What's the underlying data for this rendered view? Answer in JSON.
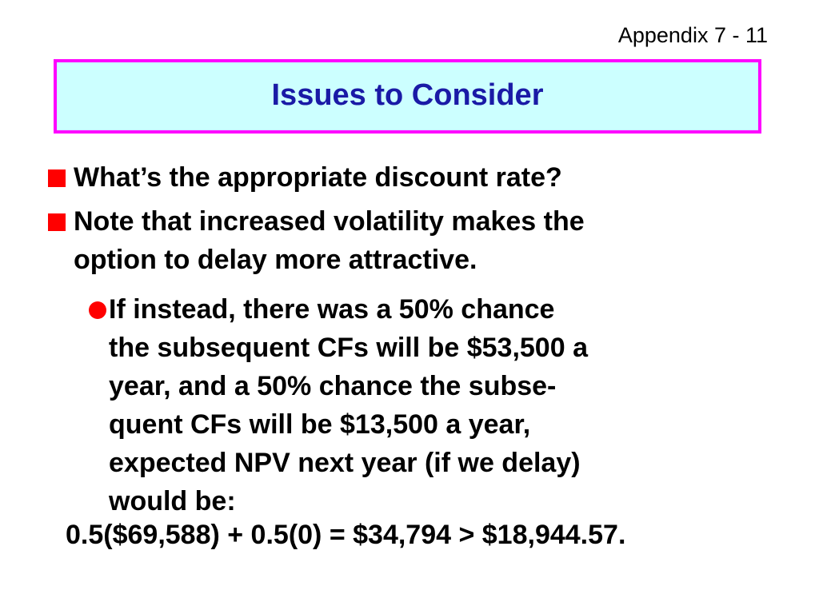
{
  "header": {
    "slide_number": "Appendix 7 - 11",
    "title": "Issues to Consider"
  },
  "colors": {
    "title_background": "#ccffff",
    "title_border": "#ff00ff",
    "title_text": "#1a1aa6",
    "bullet_marker": "#ff0000"
  },
  "bullets": [
    {
      "icon": "red-square-bullet",
      "text": "What’s the appropriate discount rate?"
    },
    {
      "icon": "red-square-bullet",
      "text": "Note that increased volatility makes the\noption to delay more attractive."
    }
  ],
  "sub_bullets": [
    {
      "icon": "red-circle-bullet",
      "text": "If instead, there was a 50% chance\nthe subsequent CFs will be $53,500 a\nyear, and a 50% chance the subse-\nquent CFs will be $13,500 a year,\nexpected NPV next year (if we delay)\nwould be:"
    }
  ],
  "formula": "0.5($69,588) + 0.5(0) = $34,794 > $18,944.57."
}
